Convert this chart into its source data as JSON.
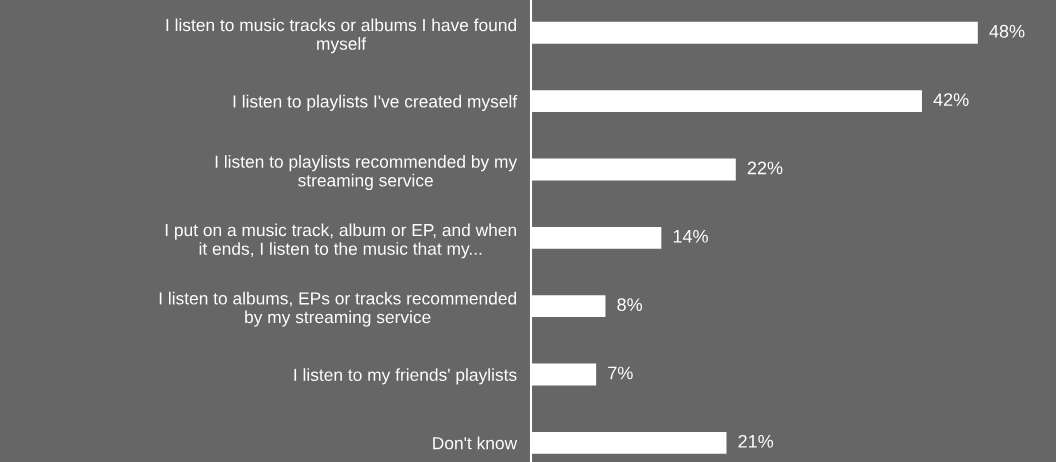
{
  "chart_data": {
    "type": "bar",
    "orientation": "horizontal",
    "categories": [
      "I listen to music tracks or albums I have found\nmyself",
      "I listen to playlists I've created myself",
      "I listen to playlists recommended by my\nstreaming service",
      "I put on a music track, album or EP, and when\nit ends, I listen to the music that my...",
      "I listen to albums, EPs or tracks recommended\nby my streaming service",
      "I listen to my friends' playlists",
      "Don't know"
    ],
    "values": [
      48,
      42,
      22,
      14,
      8,
      7,
      21
    ],
    "value_labels": [
      "48%",
      "42%",
      "22%",
      "14%",
      "8%",
      "7%",
      "21%"
    ],
    "color": "#ffffff",
    "grid": false,
    "legend": false
  }
}
